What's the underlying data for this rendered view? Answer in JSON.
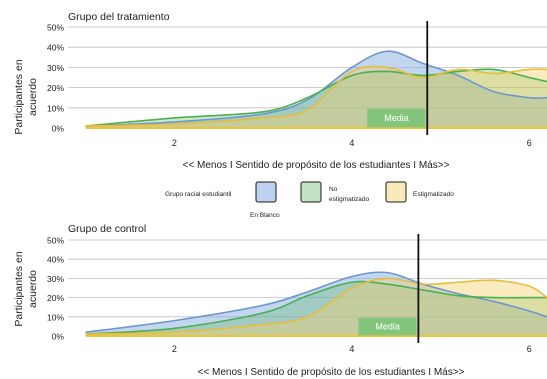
{
  "colors": {
    "blanco": "#8fb4e3",
    "no_estigmatizado": "#4caf50",
    "estigmatizado": "#f2d06b",
    "media_box": "#7dc47a",
    "mean_line": "#111111"
  },
  "legend": {
    "title": "Grupo racial estudiantil",
    "items": [
      {
        "key": "blanco",
        "label": "En Blanco"
      },
      {
        "key": "no_estigmatizado",
        "label_line1": "No",
        "label_line2": "estigmatizado"
      },
      {
        "key": "estigmatizado",
        "label": "Estigmatizado"
      }
    ]
  },
  "chart_data": [
    {
      "type": "area",
      "title": "Grupo del tratamiento",
      "ylabel_line1": "Participantes en",
      "ylabel_line2": "acuerdo",
      "xlabel": "<< Menos I Sentido de propósito de los estudiantes I Más>>",
      "xlim": [
        0.8,
        6.2
      ],
      "ylim": [
        0,
        50
      ],
      "xticks": [
        2,
        4,
        6
      ],
      "yticks": [
        0,
        10,
        20,
        30,
        40,
        50
      ],
      "ytick_labels": [
        "0%",
        "10%",
        "20%",
        "30%",
        "40%",
        "50%"
      ],
      "grid": true,
      "mean_line_x": 4.85,
      "mean_label": "Media",
      "series": [
        {
          "key": "blanco",
          "x": [
            1,
            2,
            3,
            3.5,
            4,
            4.4,
            4.8,
            5.2,
            5.6,
            6,
            6.2
          ],
          "values": [
            1,
            3,
            7,
            14,
            30,
            38,
            32,
            26,
            18,
            15,
            15
          ]
        },
        {
          "key": "no_estigmatizado",
          "x": [
            1,
            2,
            3,
            3.5,
            4,
            4.4,
            4.8,
            5.2,
            5.6,
            6,
            6.2
          ],
          "values": [
            1,
            5,
            8,
            15,
            26,
            28,
            26,
            28,
            29,
            25,
            23
          ]
        },
        {
          "key": "estigmatizado",
          "x": [
            1,
            2,
            3,
            3.5,
            4,
            4.4,
            4.8,
            5.2,
            5.6,
            6,
            6.2
          ],
          "values": [
            1,
            2,
            5,
            9,
            28,
            30,
            25,
            29,
            27,
            29,
            29
          ]
        }
      ]
    },
    {
      "type": "area",
      "title": "Grupo de control",
      "ylabel_line1": "Participantes en",
      "ylabel_line2": "acuerdo",
      "xlabel": "<< Menos I Sentido de propósito de los estudiantes I Más>>",
      "xlim": [
        0.8,
        6.2
      ],
      "ylim": [
        0,
        50
      ],
      "xticks": [
        2,
        4,
        6
      ],
      "yticks": [
        0,
        10,
        20,
        30,
        40,
        50
      ],
      "ytick_labels": [
        "0%",
        "10%",
        "20%",
        "30%",
        "40%",
        "50%"
      ],
      "grid": true,
      "mean_line_x": 4.75,
      "mean_label": "Media",
      "series": [
        {
          "key": "blanco",
          "x": [
            1,
            2,
            3,
            3.5,
            4,
            4.4,
            4.8,
            5.2,
            5.6,
            6,
            6.2
          ],
          "values": [
            2,
            8,
            16,
            23,
            31,
            33,
            27,
            22,
            18,
            13,
            10
          ]
        },
        {
          "key": "no_estigmatizado",
          "x": [
            1,
            2,
            3,
            3.5,
            4,
            4.4,
            4.8,
            5.2,
            5.6,
            6,
            6.2
          ],
          "values": [
            1,
            4,
            12,
            21,
            28,
            27,
            24,
            21,
            20,
            20,
            20
          ]
        },
        {
          "key": "estigmatizado",
          "x": [
            1,
            2,
            3,
            3.5,
            4,
            4.4,
            4.8,
            5.2,
            5.6,
            6,
            6.2
          ],
          "values": [
            1,
            2,
            6,
            10,
            25,
            30,
            27,
            28,
            29,
            26,
            20
          ]
        }
      ]
    }
  ]
}
